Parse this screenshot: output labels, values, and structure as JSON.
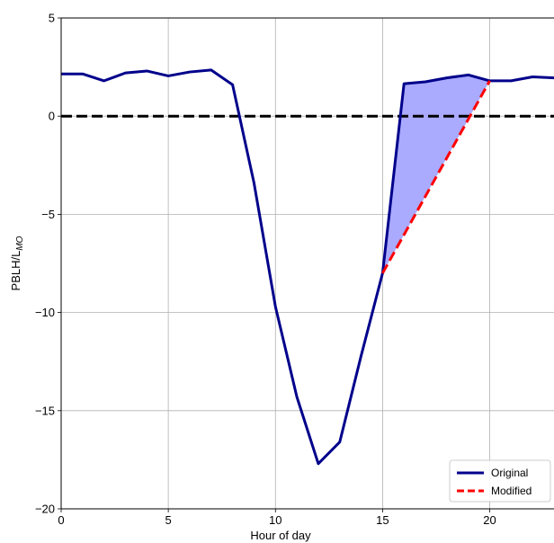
{
  "chart_data": {
    "type": "line",
    "xlabel": "Hour of day",
    "ylabel_main": "PBLH/L",
    "ylabel_sub": "MO",
    "xlim": [
      0,
      23
    ],
    "ylim": [
      -20,
      5
    ],
    "xticks": [
      0,
      5,
      10,
      15,
      20
    ],
    "yticks": [
      5,
      0,
      -5,
      -10,
      -15,
      -20
    ],
    "ytick_labels": [
      "5",
      "0",
      "−5",
      "−10",
      "−15",
      "−20"
    ],
    "grid": true,
    "legend_position": "lower-right",
    "reference_line": {
      "y": 0,
      "style": "dashed",
      "color": "#000000"
    },
    "series": [
      {
        "name": "Original",
        "color": "#00008b",
        "style": "solid",
        "x": [
          0,
          1,
          2,
          3,
          4,
          5,
          6,
          7,
          8,
          9,
          10,
          11,
          12,
          13,
          14,
          15,
          16,
          17,
          18,
          19,
          20,
          21,
          22,
          23
        ],
        "values": [
          2.15,
          2.15,
          1.8,
          2.2,
          2.3,
          2.05,
          2.25,
          2.35,
          1.6,
          -3.4,
          -9.7,
          -14.3,
          -17.7,
          -16.6,
          -12.2,
          -8.0,
          1.65,
          1.75,
          1.95,
          2.1,
          1.8,
          1.8,
          2.0,
          1.95
        ]
      },
      {
        "name": "Modified",
        "color": "#ff0000",
        "style": "dashed",
        "x": [
          15,
          20
        ],
        "values": [
          -8.0,
          1.8
        ]
      }
    ],
    "fill": {
      "between": [
        "Original",
        "Modified"
      ],
      "x_range": [
        15,
        20
      ],
      "color": "#aaaaff"
    }
  }
}
